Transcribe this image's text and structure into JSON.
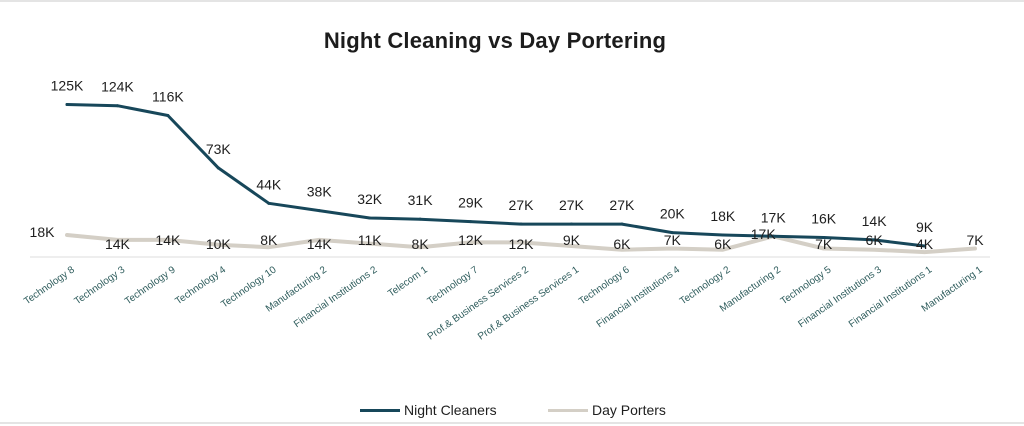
{
  "chart_data": {
    "type": "line",
    "title": "Night Cleaning vs Day Portering",
    "xlabel": "",
    "ylabel": "",
    "categories": [
      "Technology 8",
      "Technology 3",
      "Technology 9",
      "Technology 4",
      "Technology 10",
      "Manufacturing 2",
      "Financial Institutions 2",
      "Telecom 1",
      "Technology 7",
      "Prof.& Business Services 2",
      "Prof.& Business Services 1",
      "Technology 6",
      "Financial Institutions 4",
      "Technology 2",
      "Manufacturing 2",
      "Technology 5",
      "Financial Institutions 3",
      "Financial Institutions 1",
      "Manufacturing 1"
    ],
    "series": [
      {
        "name": "Night Cleaners",
        "color": "#17475a",
        "values": [
          125,
          124,
          116,
          73,
          44,
          38,
          32,
          31,
          29,
          27,
          27,
          27,
          20,
          18,
          17,
          16,
          14,
          9,
          null
        ],
        "labels": [
          "125K",
          "124K",
          "116K",
          "73K",
          "44K",
          "38K",
          "32K",
          "31K",
          "29K",
          "27K",
          "27K",
          "27K",
          "20K",
          "18K",
          "17K",
          "16K",
          "14K",
          "9K",
          null
        ]
      },
      {
        "name": "Day Porters",
        "color": "#d4cfc6",
        "values": [
          18,
          14,
          14,
          10,
          8,
          14,
          11,
          8,
          12,
          12,
          9,
          6,
          7,
          6,
          17,
          7,
          6,
          4,
          7
        ],
        "labels": [
          "18K",
          "14K",
          "14K",
          "10K",
          "8K",
          "14K",
          "11K",
          "8K",
          "12K",
          "12K",
          "9K",
          "6K",
          "7K",
          "6K",
          "17K",
          "7K",
          "6K",
          "4K",
          "7K"
        ]
      }
    ],
    "ylim": [
      0,
      130
    ],
    "grid": false,
    "legend": "bottom"
  }
}
